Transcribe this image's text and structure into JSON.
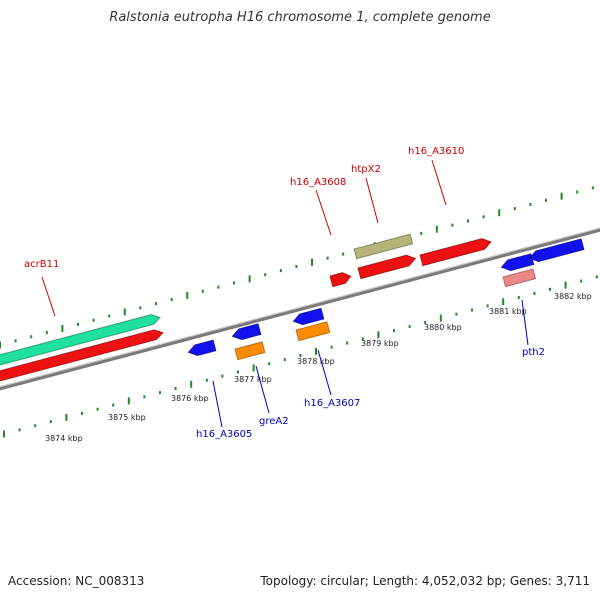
{
  "title": "Ralstonia eutropha H16 chromosome 1, complete genome",
  "footer": {
    "accession": "Accession: NC_008313",
    "summary": "Topology: circular; Length: 4,052,032 bp; Genes: 3,711"
  },
  "colors": {
    "backbone": "#7a7a7a",
    "tick": "#1f8a1f",
    "forward_label": "#cc0000",
    "reverse_label": "#0000bb"
  },
  "kbp_ticks": {
    "lower": [
      "3874 kbp",
      "3875 kbp",
      "3876 kbp",
      "3877 kbp",
      "3878 kbp",
      "3879 kbp",
      "3880 kbp",
      "3881 kbp",
      "3882 kbp"
    ]
  },
  "features": [
    {
      "id": "acrB11",
      "label": "acrB11",
      "strand": "forward",
      "color": "#1fe0a0"
    },
    {
      "id": "acrB11-cds",
      "label": "",
      "strand": "forward",
      "color": "#ee1111"
    },
    {
      "id": "h16_A3608",
      "label": "h16_A3608",
      "strand": "forward",
      "color": "#ee1111"
    },
    {
      "id": "htpX2",
      "label": "htpX2",
      "strand": "forward",
      "color": "#b5b57a"
    },
    {
      "id": "htpX2-cds",
      "label": "",
      "strand": "forward",
      "color": "#ee1111"
    },
    {
      "id": "h16_A3610",
      "label": "h16_A3610",
      "strand": "forward",
      "color": "#ee1111"
    },
    {
      "id": "h16_A3605",
      "label": "h16_A3605",
      "strand": "reverse",
      "color": "#1111ee"
    },
    {
      "id": "greA2",
      "label": "greA2",
      "strand": "reverse",
      "color": "#1111ee"
    },
    {
      "id": "greA2-rna",
      "label": "",
      "strand": "reverse",
      "color": "#ff8c00"
    },
    {
      "id": "h16_A3607",
      "label": "h16_A3607",
      "strand": "reverse",
      "color": "#1111ee"
    },
    {
      "id": "h16_A3607-rna",
      "label": "",
      "strand": "reverse",
      "color": "#ff8c00"
    },
    {
      "id": "pth2",
      "label": "pth2",
      "strand": "reverse",
      "color": "#ee8888"
    },
    {
      "id": "pth2-cds",
      "label": "",
      "strand": "reverse",
      "color": "#1111ee"
    },
    {
      "id": "pth2-next",
      "label": "",
      "strand": "reverse",
      "color": "#1111ee"
    }
  ]
}
